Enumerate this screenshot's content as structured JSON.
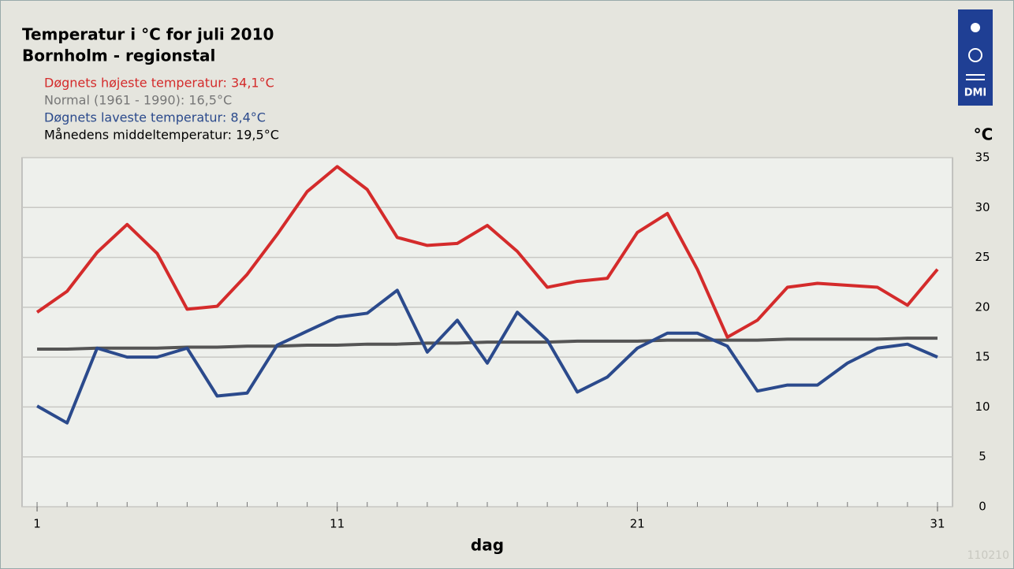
{
  "chart_data": {
    "type": "line",
    "title": "Temperatur i °C for juli 2010",
    "subtitle": "Bornholm - regionstal",
    "annotation": "Månedens middeltemperatur: 19,5°C",
    "y_unit": "°C",
    "x_label": "dag",
    "watermark": "110210",
    "logo_text": "DMI",
    "x": [
      1,
      2,
      3,
      4,
      5,
      6,
      7,
      8,
      9,
      10,
      11,
      12,
      13,
      14,
      15,
      16,
      17,
      18,
      19,
      20,
      21,
      22,
      23,
      24,
      25,
      26,
      27,
      28,
      29,
      30,
      31
    ],
    "xlim": [
      0.5,
      31.5
    ],
    "xticks": [
      1,
      11,
      21,
      31
    ],
    "ylim": [
      0,
      35
    ],
    "yticks": [
      0,
      5,
      10,
      15,
      20,
      25,
      30,
      35
    ],
    "grid": true,
    "series": [
      {
        "name": "Døgnets højeste temperatur: 34,1°C",
        "color": "#d42b2b",
        "values": [
          19.5,
          21.6,
          25.5,
          28.3,
          25.4,
          19.8,
          20.1,
          23.3,
          27.3,
          31.6,
          34.1,
          31.8,
          27.0,
          26.2,
          26.4,
          28.2,
          25.6,
          22.0,
          22.6,
          22.9,
          27.5,
          29.4,
          23.8,
          17.0,
          18.7,
          22.0,
          22.4,
          22.2,
          22.0,
          20.2,
          23.8
        ]
      },
      {
        "name": "Normal (1961 - 1990): 16,5°C",
        "color": "#555555",
        "legend_color": "#777777",
        "values": [
          15.8,
          15.8,
          15.9,
          15.9,
          15.9,
          16.0,
          16.0,
          16.1,
          16.1,
          16.2,
          16.2,
          16.3,
          16.3,
          16.4,
          16.4,
          16.5,
          16.5,
          16.5,
          16.6,
          16.6,
          16.6,
          16.7,
          16.7,
          16.7,
          16.7,
          16.8,
          16.8,
          16.8,
          16.8,
          16.9,
          16.9
        ]
      },
      {
        "name": "Døgnets laveste temperatur: 8,4°C",
        "color": "#2b4a8c",
        "values": [
          10.1,
          8.4,
          15.9,
          15.0,
          15.0,
          15.9,
          11.1,
          11.4,
          16.2,
          17.6,
          19.0,
          19.4,
          21.7,
          15.5,
          18.7,
          14.4,
          19.5,
          16.7,
          11.5,
          13.0,
          15.9,
          17.4,
          17.4,
          16.1,
          11.6,
          12.2,
          12.2,
          14.4,
          15.9,
          16.3,
          15.0
        ]
      }
    ]
  }
}
